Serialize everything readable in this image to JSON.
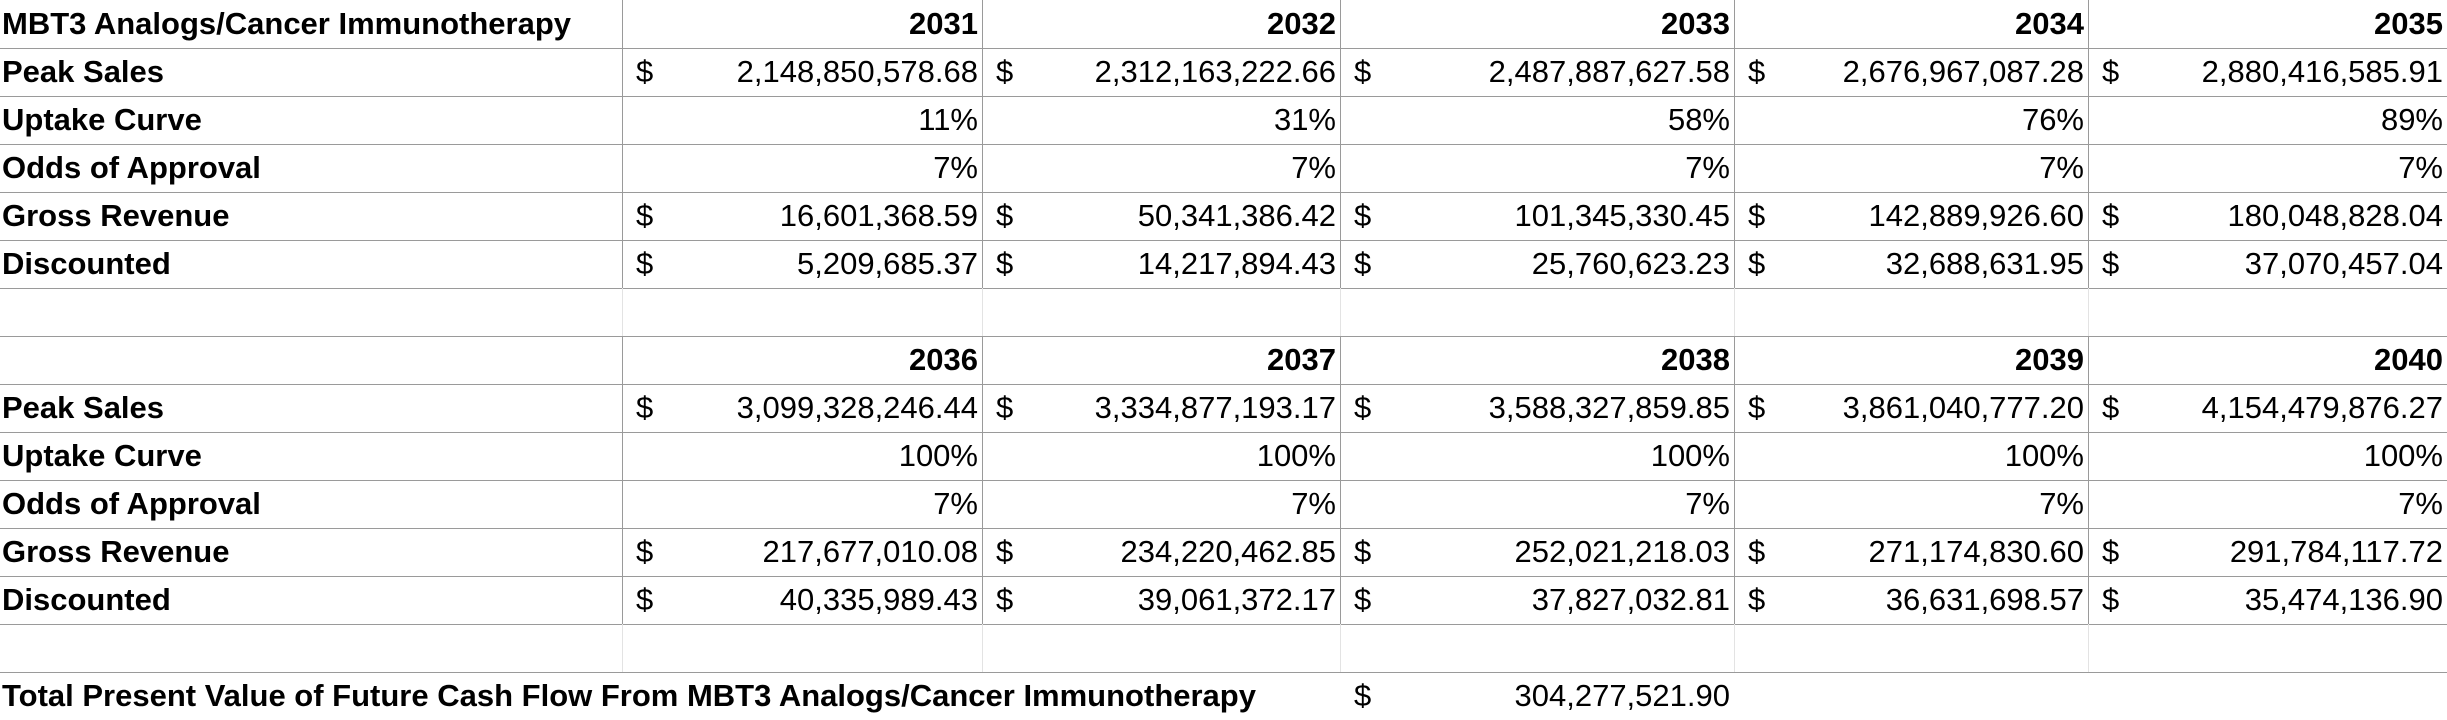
{
  "title": "MBT3 Analogs/Cancer Immunotherapy",
  "row_labels": [
    "Peak Sales",
    "Uptake Curve",
    "Odds of Approval",
    "Gross Revenue",
    "Discounted"
  ],
  "currency_symbol": "$",
  "blocks": [
    {
      "years": [
        "2031",
        "2032",
        "2033",
        "2034",
        "2035"
      ],
      "peak_sales": [
        "2,148,850,578.68",
        "2,312,163,222.66",
        "2,487,887,627.58",
        "2,676,967,087.28",
        "2,880,416,585.91"
      ],
      "uptake_curve": [
        "11%",
        "31%",
        "58%",
        "76%",
        "89%"
      ],
      "odds_of_approval": [
        "7%",
        "7%",
        "7%",
        "7%",
        "7%"
      ],
      "gross_revenue": [
        "16,601,368.59",
        "50,341,386.42",
        "101,345,330.45",
        "142,889,926.60",
        "180,048,828.04"
      ],
      "discounted": [
        "5,209,685.37",
        "14,217,894.43",
        "25,760,623.23",
        "32,688,631.95",
        "37,070,457.04"
      ]
    },
    {
      "years": [
        "2036",
        "2037",
        "2038",
        "2039",
        "2040"
      ],
      "peak_sales": [
        "3,099,328,246.44",
        "3,334,877,193.17",
        "3,588,327,859.85",
        "3,861,040,777.20",
        "4,154,479,876.27"
      ],
      "uptake_curve": [
        "100%",
        "100%",
        "100%",
        "100%",
        "100%"
      ],
      "odds_of_approval": [
        "7%",
        "7%",
        "7%",
        "7%",
        "7%"
      ],
      "gross_revenue": [
        "217,677,010.08",
        "234,220,462.85",
        "252,021,218.03",
        "271,174,830.60",
        "291,784,117.72"
      ],
      "discounted": [
        "40,335,989.43",
        "39,061,372.17",
        "37,827,032.81",
        "36,631,698.57",
        "35,474,136.90"
      ]
    }
  ],
  "total": {
    "label": "Total Present Value of Future Cash Flow From MBT3 Analogs/Cancer Immunotherapy",
    "value": "304,277,521.90"
  }
}
